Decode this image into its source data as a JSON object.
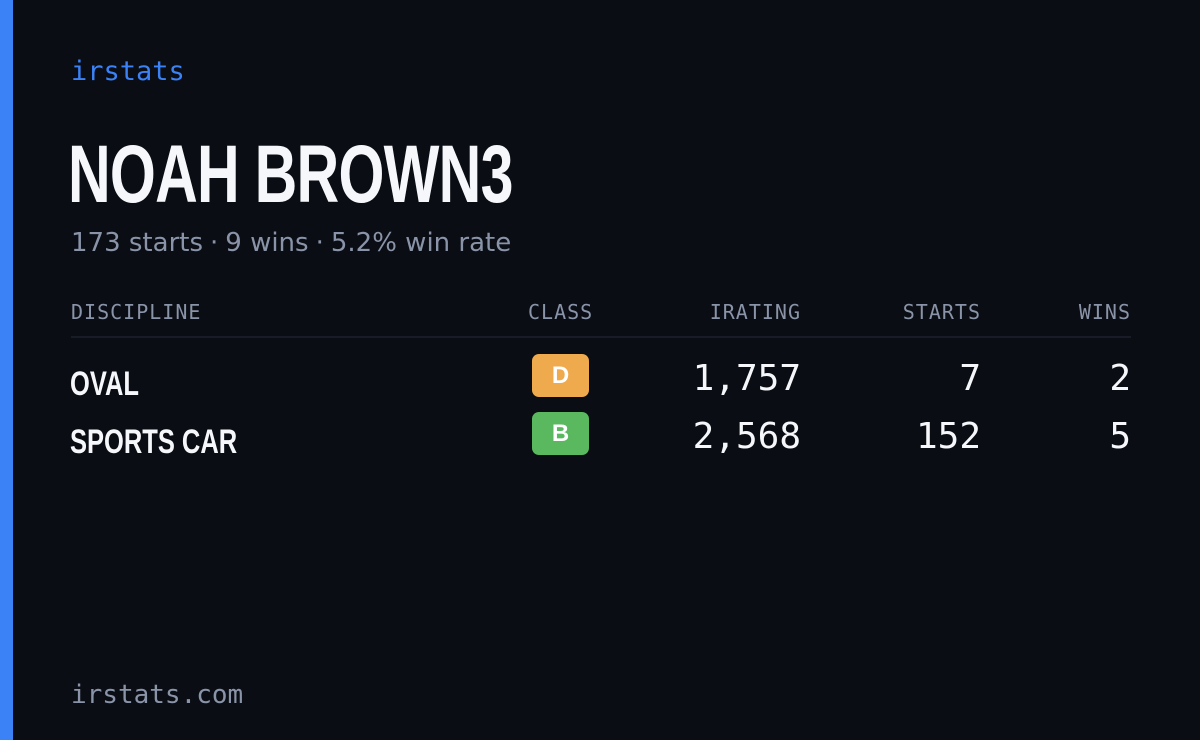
{
  "brand": "irstats",
  "driver": {
    "name": "NOAH BROWN3",
    "starts": "173 starts",
    "wins": "9 wins",
    "win_rate": "5.2% win rate",
    "separator": "·"
  },
  "table": {
    "headers": {
      "discipline": "DISCIPLINE",
      "class": "CLASS",
      "irating": "IRATING",
      "starts": "STARTS",
      "wins": "WINS"
    },
    "rows": [
      {
        "discipline": "OVAL",
        "class": "D",
        "class_color": "#eeaa4d",
        "irating": "1,757",
        "starts": "7",
        "wins": "2"
      },
      {
        "discipline": "SPORTS CAR",
        "class": "B",
        "class_color": "#5ab85f",
        "irating": "2,568",
        "starts": "152",
        "wins": "5"
      }
    ]
  },
  "footer": "irstats.com",
  "colors": {
    "background": "#0a0d14",
    "accent": "#3b82f6",
    "text": "#f5f7fb",
    "muted": "#8a94a8"
  }
}
